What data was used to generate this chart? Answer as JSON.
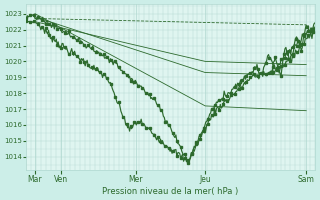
{
  "bg_color": "#cceee8",
  "plot_bg_color": "#dff5f0",
  "grid_color": "#b0d8d0",
  "line_color": "#2d6a2d",
  "xlabel": "Pression niveau de la mer( hPa )",
  "xtick_labels": [
    "Mar",
    "Ven",
    "Mer",
    "Jeu",
    "Sam"
  ],
  "xtick_positions": [
    0.03,
    0.12,
    0.38,
    0.62,
    0.97
  ],
  "ylim": [
    1013.2,
    1023.6
  ],
  "yticks": [
    1014,
    1015,
    1016,
    1017,
    1018,
    1019,
    1020,
    1021,
    1022,
    1023
  ],
  "figsize": [
    3.2,
    2.0
  ],
  "dpi": 100,
  "thin_lines": [
    {
      "x0": 0.03,
      "y0": 1022.7,
      "x1": 0.97,
      "y1": 1022.3,
      "style": "dashed",
      "lw": 0.6
    },
    {
      "x0": 0.03,
      "y0": 1022.5,
      "x1": 0.62,
      "y1": 1020.0,
      "x2": 0.97,
      "y2": 1019.8,
      "style": "solid",
      "lw": 0.6
    },
    {
      "x0": 0.03,
      "y0": 1022.8,
      "x1": 0.62,
      "y1": 1019.3,
      "x2": 0.97,
      "y2": 1019.1,
      "style": "solid",
      "lw": 0.6
    },
    {
      "x0": 0.03,
      "y0": 1023.0,
      "x1": 0.62,
      "y1": 1017.2,
      "x2": 0.97,
      "y2": 1016.9,
      "style": "solid",
      "lw": 0.6
    }
  ]
}
